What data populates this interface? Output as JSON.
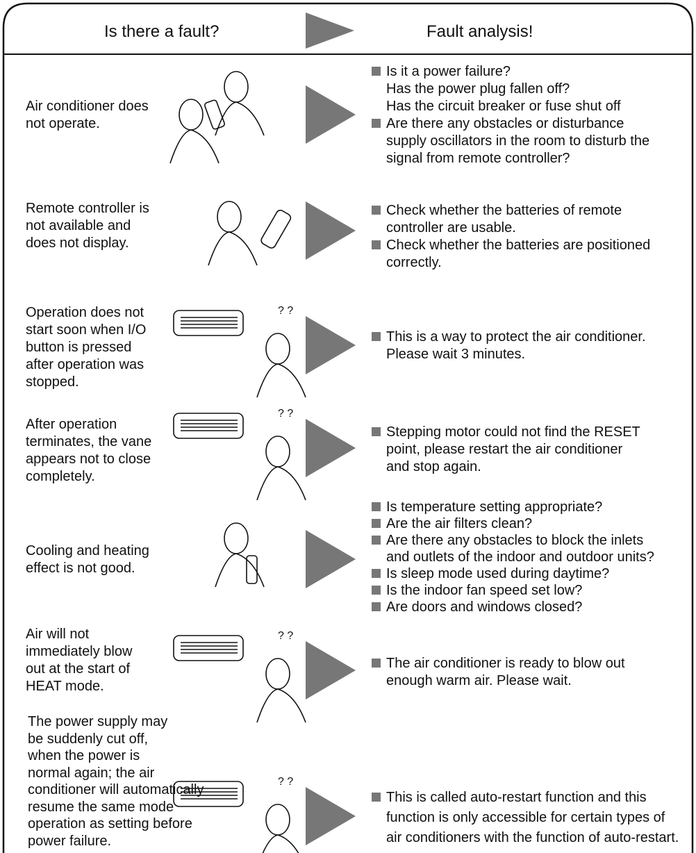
{
  "header": {
    "left": "Is there a fault?",
    "right": "Fault analysis!"
  },
  "rows": [
    {
      "fault": [
        "Air conditioner does",
        "not operate."
      ],
      "analysis": [
        [
          "Is it a power failure?",
          "Has the power plug fallen off?",
          "Has the circuit breaker or fuse shut off"
        ],
        [
          "Are there any obstacles or disturbance",
          "supply oscillators in the room to disturb the",
          "signal from remote controller?"
        ]
      ]
    },
    {
      "fault": [
        "Remote controller is",
        "not available and",
        "does not display."
      ],
      "analysis": [
        [
          "Check whether the batteries of remote",
          "controller are usable."
        ],
        [
          "Check whether the batteries are positioned",
          "correctly."
        ]
      ]
    },
    {
      "fault": [
        "Operation does not",
        "start soon when I/O",
        "button is pressed",
        "after operation was",
        "stopped."
      ],
      "analysis": [
        [
          "This is a way to protect the air conditioner.",
          "Please wait 3 minutes."
        ]
      ]
    },
    {
      "fault": [
        "After operation",
        "terminates, the vane",
        "appears not to close",
        "completely."
      ],
      "analysis": [
        [
          "Stepping motor could not find the RESET",
          "point, please restart the air conditioner",
          "and stop again."
        ]
      ]
    },
    {
      "fault": [
        "Cooling and heating",
        "effect is not good."
      ],
      "analysis": [
        [
          "Is temperature setting appropriate?"
        ],
        [
          "Are the air filters clean?"
        ],
        [
          "Are there any obstacles to block the inlets",
          "and outlets of the indoor and outdoor units?"
        ],
        [
          "Is sleep mode used during daytime?"
        ],
        [
          "Is the indoor fan speed set low?"
        ],
        [
          "Are doors and windows closed?"
        ]
      ]
    },
    {
      "fault": [
        "Air will not",
        "immediately blow",
        "out at the start of",
        "HEAT mode."
      ],
      "analysis": [
        [
          "The air conditioner is ready to blow out",
          "enough warm air. Please wait."
        ]
      ]
    },
    {
      "fault": [
        "The power supply may",
        "be suddenly cut off,",
        "when the power is",
        "normal again; the air",
        "conditioner will automatically",
        "resume the same mode",
        "operation as setting before",
        "power failure."
      ],
      "analysis": [
        [
          "This is called auto-restart function and this",
          "function is only accessible for certain types of",
          "air conditioners with the function of auto-restart."
        ]
      ]
    }
  ]
}
